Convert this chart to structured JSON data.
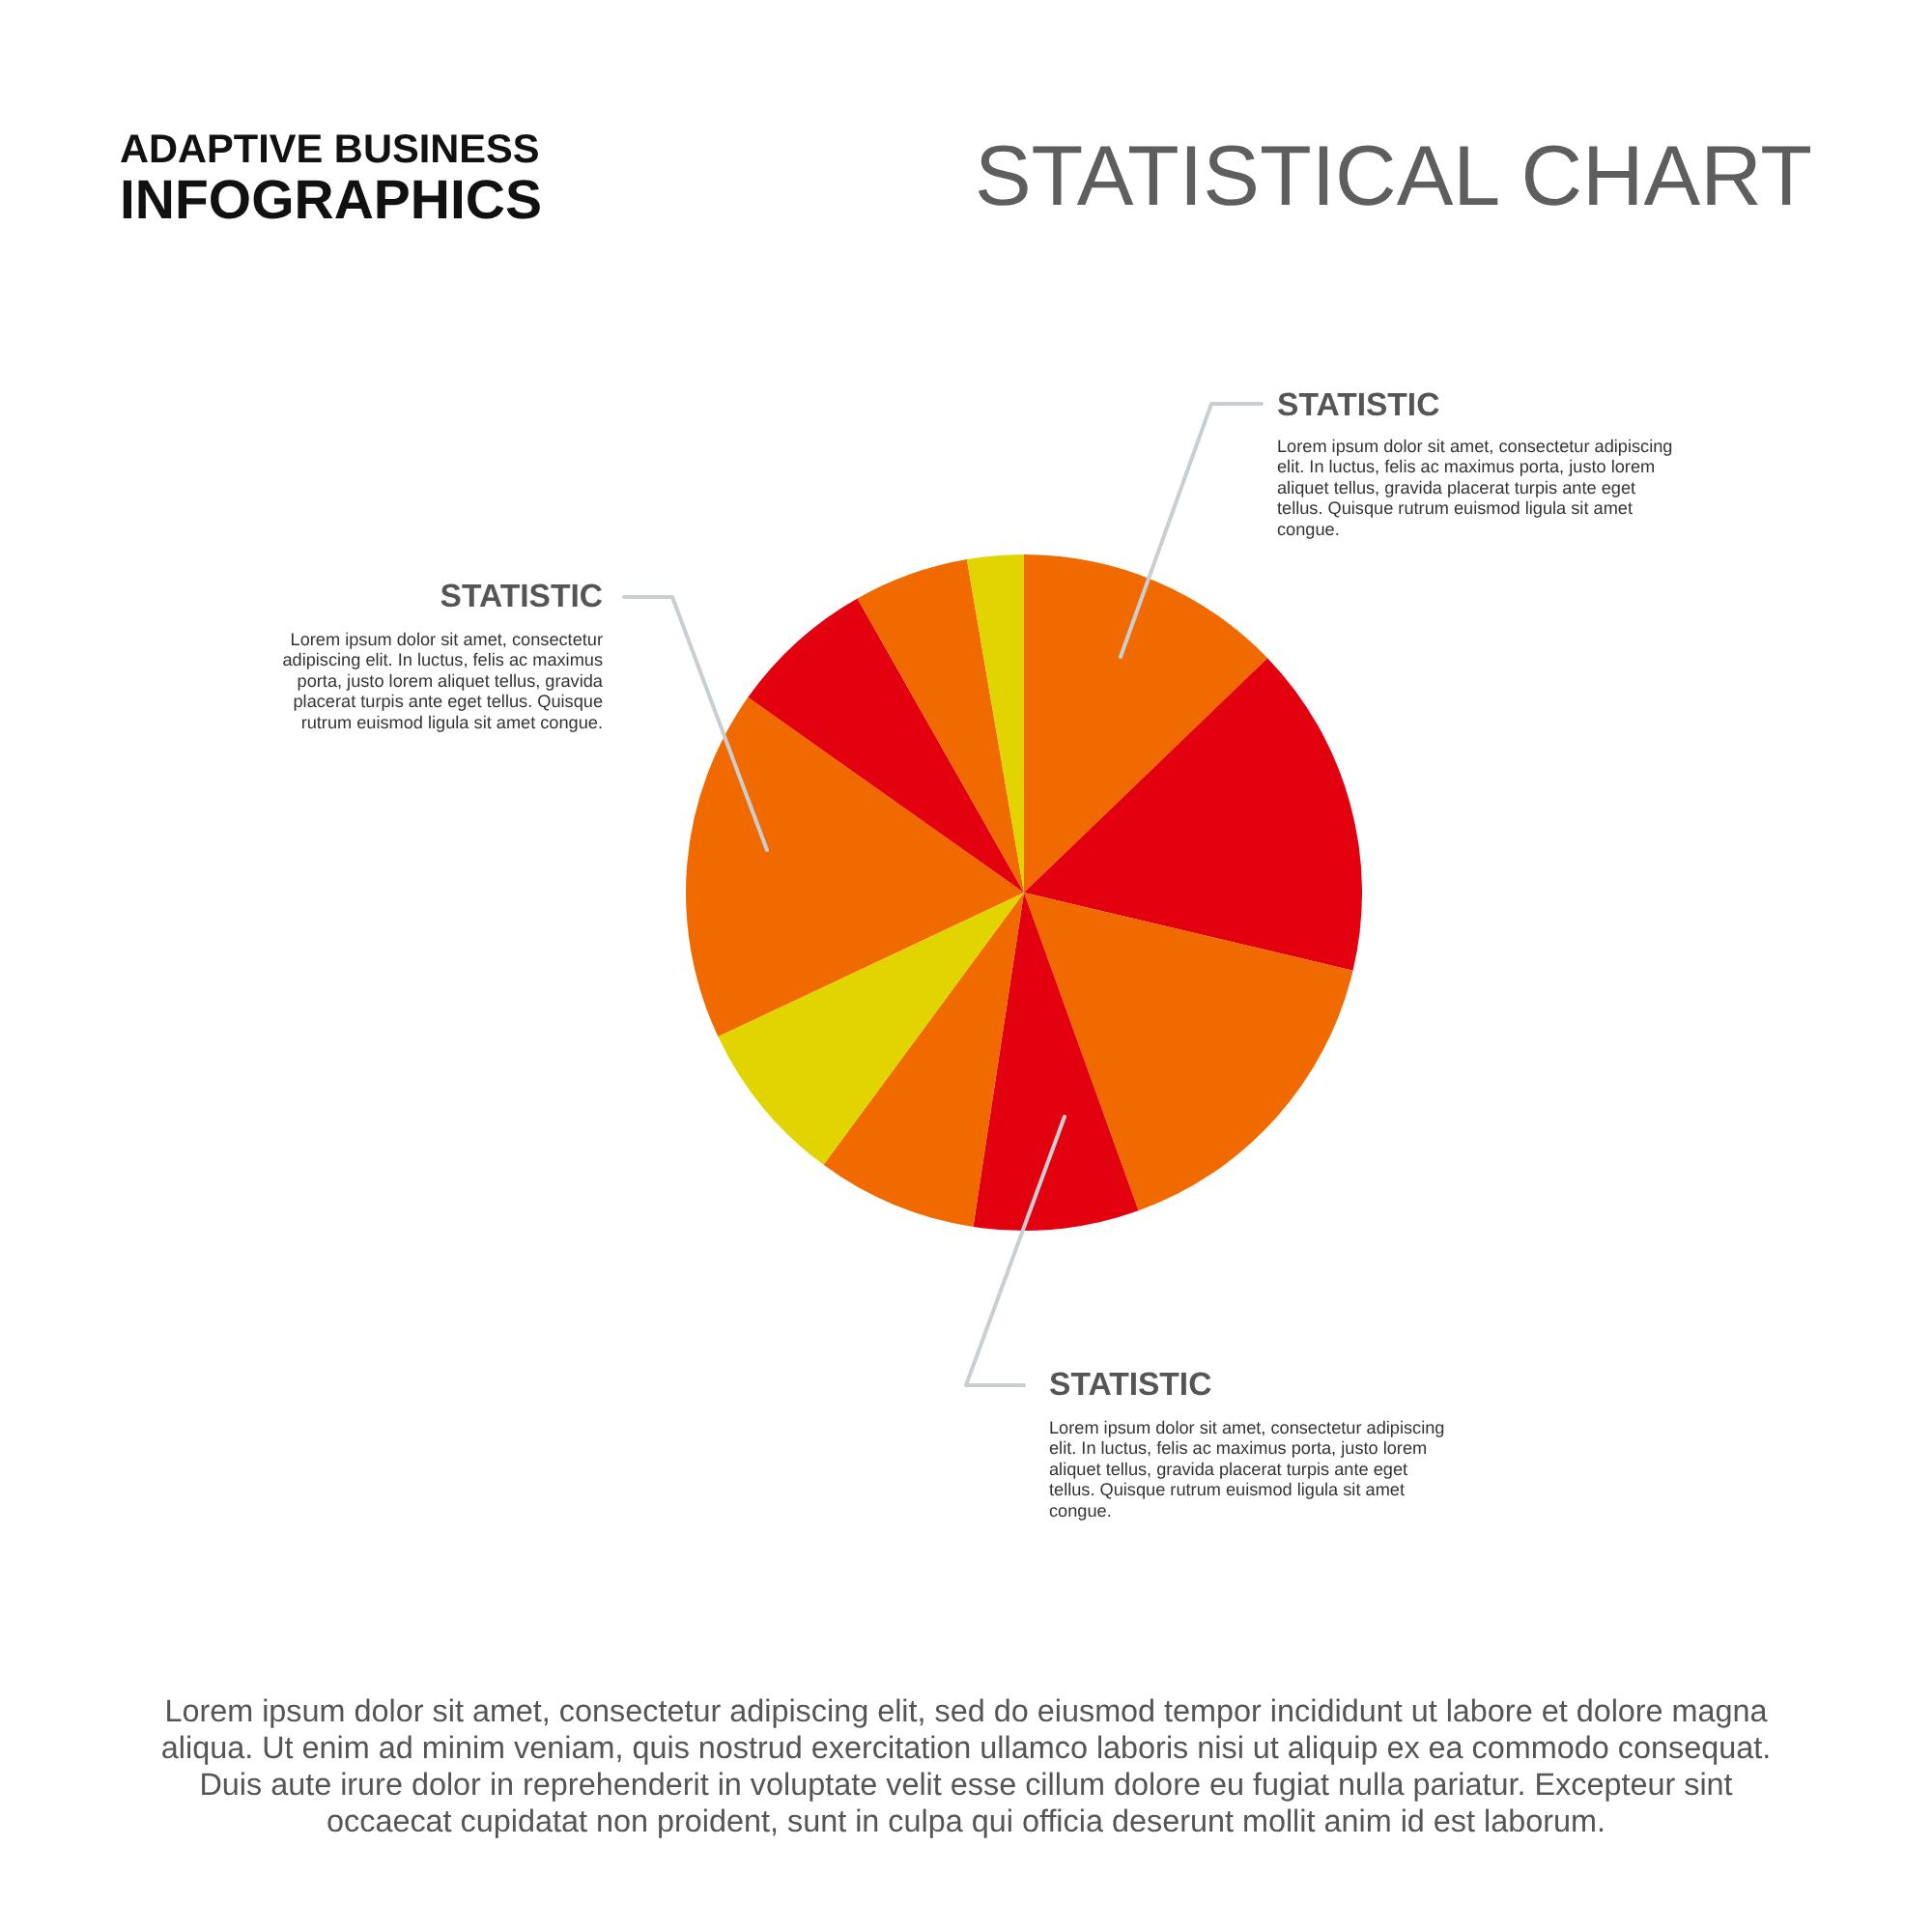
{
  "chart_data": {
    "type": "pie",
    "title": "STATISTICAL CHART",
    "subtitle": "ADAPTIVE BUSINESS INFOGRAPHICS",
    "categories": [
      null,
      null,
      null,
      null,
      null,
      null,
      null,
      null,
      null,
      null
    ],
    "values": [
      12.8,
      15.9,
      15.8,
      7.9,
      7.7,
      7.9,
      16.8,
      7.0,
      5.5,
      2.7
    ],
    "colors": [
      "#f06a00",
      "#e3000f",
      "#f06a00",
      "#e3000f",
      "#f06a00",
      "#e2d400",
      "#f06a00",
      "#e3000f",
      "#f06a00",
      "#e2d400"
    ],
    "annotations": [
      "STATISTIC",
      "Lorem ipsum dolor sit amet, consectetur adipiscing elit. In luctus, felis ac maximus porta, justo lorem aliquet tellus, gravida placerat turpis ante eget tellus. Quisque rutrum euismod ligula sit amet congue.",
      "STATISTIC",
      "Lorem ipsum dolor sit amet, consectetur adipiscing elit. In luctus, felis ac maximus porta, justo lorem aliquet tellus, gravida placerat turpis ante eget tellus. Quisque rutrum euismod ligula sit amet congue.",
      "STATISTIC",
      "Lorem ipsum dolor sit amet, consectetur adipiscing elit. In luctus, felis ac maximus porta, justo lorem aliquet tellus, gravida placerat turpis ante eget tellus. Quisque rutrum euismod ligula sit amet congue.",
      "Lorem ipsum dolor sit amet, consectetur adipiscing elit, sed do eiusmod tempor incididunt ut labore et dolore magna aliqua. Ut enim ad minim veniam, quis nostrud exercitation ullamco laboris nisi ut aliquip ex ea commodo consequat. Duis aute irure dolor in reprehenderit in voluptate velit esse cillum dolore eu fugiat nulla pariatur. Excepteur sint occaecat cupidatat non proident, sunt in culpa qui officia deserunt mollit anim id est laborum."
    ]
  }
}
